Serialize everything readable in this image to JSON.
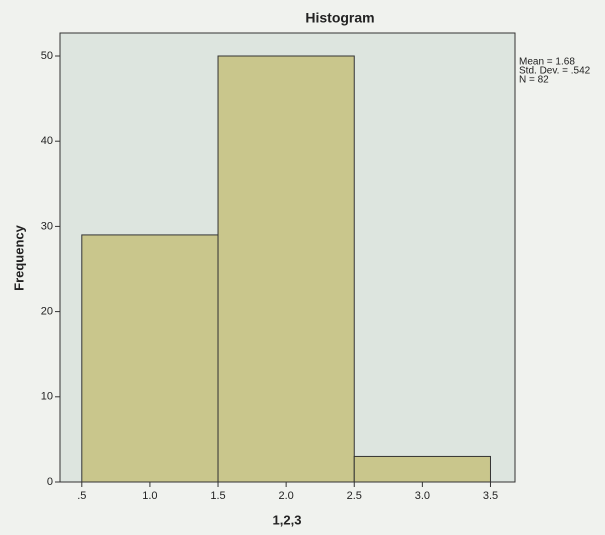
{
  "chart_data": {
    "type": "histogram",
    "title": "Histogram",
    "bins": [
      0.5,
      1.5,
      2.5,
      3.5
    ],
    "values": [
      29,
      50,
      3
    ],
    "color": "#c9c68c",
    "xlabel": "1,2,3",
    "ylabel": "Frequency",
    "xlim": [
      0.34,
      3.68
    ],
    "ylim": [
      0,
      52.7
    ],
    "xticks": [
      {
        "value": 0.5,
        "label": ".5"
      },
      {
        "value": 1,
        "label": "1.0"
      },
      {
        "value": 1.5,
        "label": "1.5"
      },
      {
        "value": 2,
        "label": "2.0"
      },
      {
        "value": 2.5,
        "label": "2.5"
      },
      {
        "value": 3,
        "label": "3.0"
      },
      {
        "value": 3.5,
        "label": "3.5"
      }
    ],
    "yticks": [
      0,
      10,
      20,
      30,
      40,
      50
    ],
    "annotations": [
      "Mean = 1.68",
      "Std. Dev. = .542",
      "N = 82"
    ]
  }
}
